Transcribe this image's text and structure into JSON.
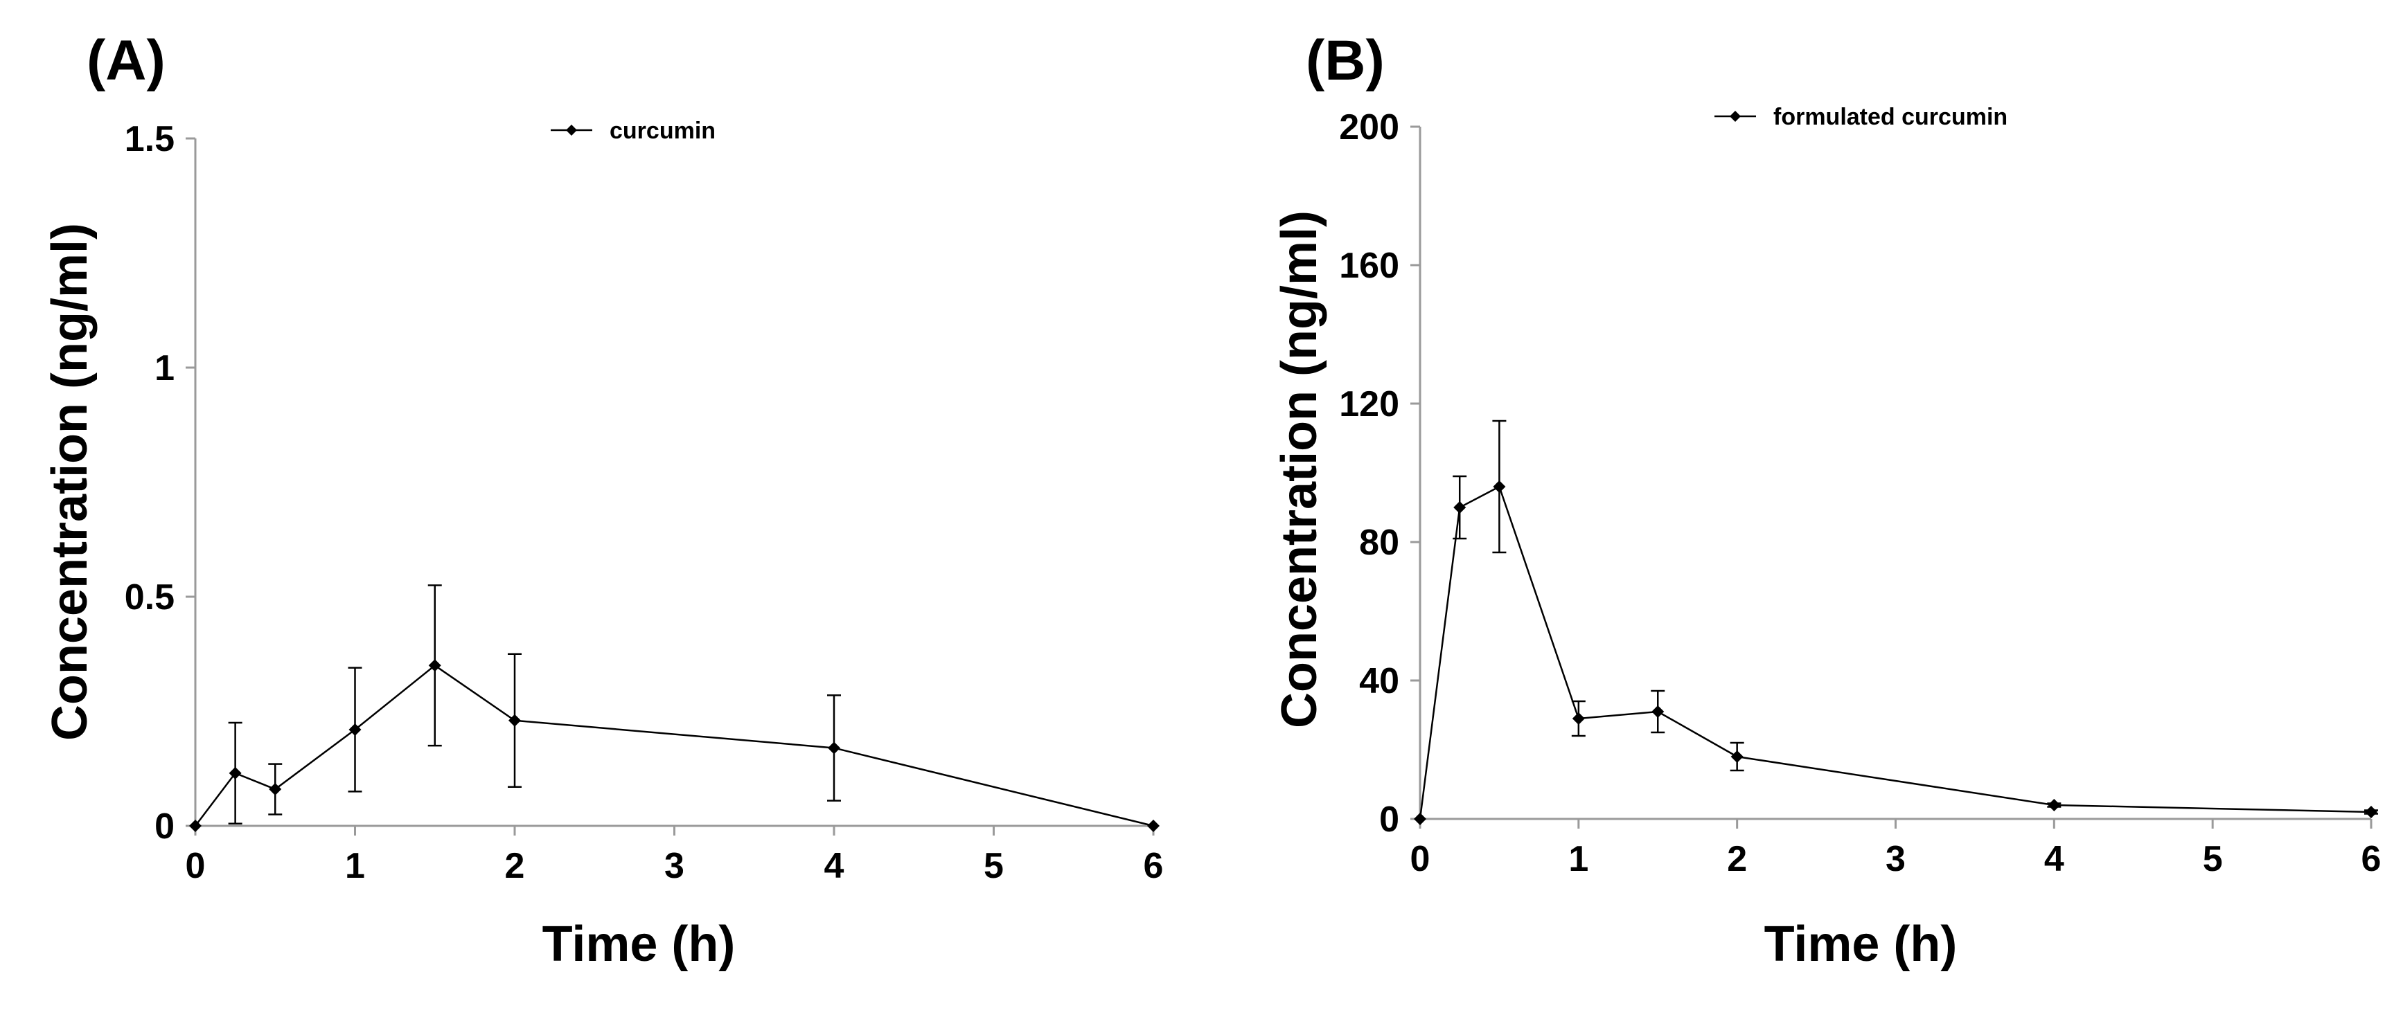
{
  "chart_data": [
    {
      "type": "line",
      "panel_label": "(A)",
      "xlabel": "Time (h)",
      "ylabel": "Concentration (ng/ml)",
      "xlim": [
        0,
        6
      ],
      "ylim": [
        0,
        1.5
      ],
      "xticks": [
        0,
        1,
        2,
        3,
        4,
        5,
        6
      ],
      "yticks": [
        0,
        0.5,
        1,
        1.5
      ],
      "xtick_labels": [
        "0",
        "1",
        "2",
        "3",
        "4",
        "5",
        "6"
      ],
      "ytick_labels": [
        "0",
        "0.5",
        "1",
        "1.5"
      ],
      "legend_position": "top-center",
      "series": [
        {
          "name": "curcumin",
          "x": [
            0,
            0.25,
            0.5,
            1,
            1.5,
            2,
            4,
            6
          ],
          "y": [
            0,
            0.115,
            0.08,
            0.21,
            0.35,
            0.23,
            0.17,
            0
          ],
          "err": [
            0,
            0.11,
            0.055,
            0.135,
            0.175,
            0.145,
            0.115,
            0
          ]
        }
      ]
    },
    {
      "type": "line",
      "panel_label": "(B)",
      "xlabel": "Time (h)",
      "ylabel": "Concentration (ng/ml)",
      "xlim": [
        0,
        6
      ],
      "ylim": [
        0,
        200
      ],
      "xticks": [
        0,
        1,
        2,
        3,
        4,
        5,
        6
      ],
      "yticks": [
        0,
        40,
        80,
        120,
        160,
        200
      ],
      "xtick_labels": [
        "0",
        "1",
        "2",
        "3",
        "4",
        "5",
        "6"
      ],
      "ytick_labels": [
        "0",
        "40",
        "80",
        "120",
        "160",
        "200"
      ],
      "legend_position": "top-center",
      "series": [
        {
          "name": "formulated curcumin",
          "x": [
            0,
            0.25,
            0.5,
            1,
            1.5,
            2,
            4,
            6
          ],
          "y": [
            0,
            90,
            96,
            29,
            31,
            18,
            4,
            2
          ],
          "err": [
            0,
            9,
            19,
            5,
            6,
            4,
            0.5,
            0.5
          ]
        }
      ]
    }
  ]
}
